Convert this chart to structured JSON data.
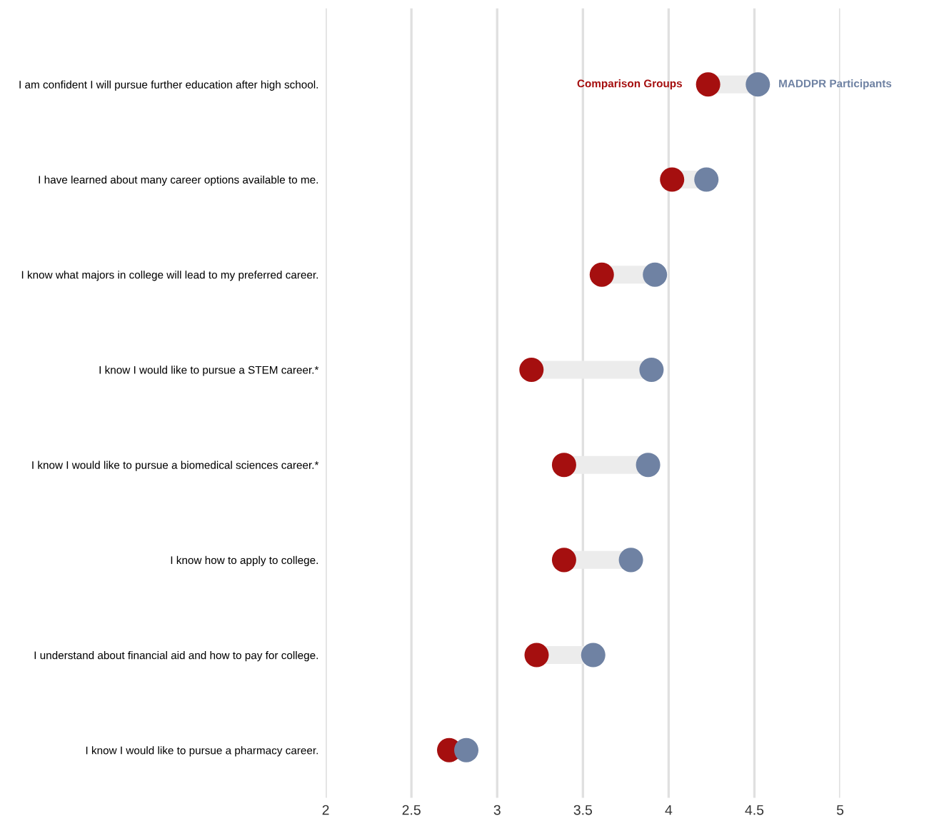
{
  "chart_data": {
    "type": "scatter",
    "orientation": "horizontal",
    "categories": [
      "I am confident I will pursue further education after high school.",
      "I have learned about many career options available to me.",
      "I know what majors in college will lead to my preferred career.",
      "I know I would like to pursue a STEM career.*",
      "I know I would like to pursue a biomedical sciences career.*",
      "I know how to apply to college.",
      "I understand about financial aid and how to pay for college.",
      "I know I would like to pursue a pharmacy career."
    ],
    "series": [
      {
        "name": "Comparison Groups",
        "color": "#a50f0f",
        "values": [
          4.23,
          4.02,
          3.61,
          3.2,
          3.39,
          3.39,
          3.23,
          2.72
        ]
      },
      {
        "name": "MADDPR Participants",
        "color": "#6f82a3",
        "values": [
          4.52,
          4.22,
          3.92,
          3.9,
          3.88,
          3.78,
          3.56,
          2.82
        ]
      }
    ],
    "xlim": [
      2,
      5
    ],
    "xticks": [
      2,
      2.5,
      3,
      3.5,
      4,
      4.5,
      5
    ],
    "grid": "x",
    "marker": "circle"
  }
}
